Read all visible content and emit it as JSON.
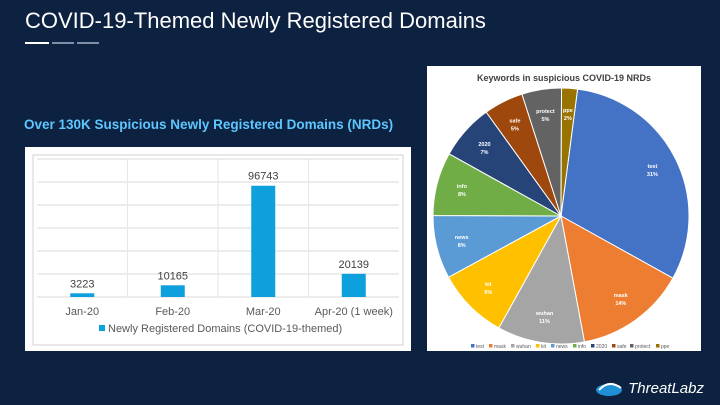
{
  "slide": {
    "title": "COVID-19-Themed Newly Registered Domains"
  },
  "colors": {
    "background": "#0d2140",
    "accent": "#5ec7ff",
    "bar": "#0ea0dc"
  },
  "bar_section": {
    "subtitle": "Over 130K Suspicious Newly Registered Domains (NRDs)"
  },
  "logo": {
    "text": "ThreatLabz",
    "icon": "cloud-logo-icon"
  },
  "chart_data": [
    {
      "type": "bar",
      "title": "",
      "categories": [
        "Jan-20",
        "Feb-20",
        "Mar-20",
        "Apr-20 (1 week)"
      ],
      "series": [
        {
          "name": "Newly Registered Domains (COVID-19-themed)",
          "values": [
            3223,
            10165,
            96743,
            20139
          ]
        }
      ],
      "data_labels": [
        "3223",
        "10165",
        "96743",
        "20139"
      ],
      "ylim": [
        0,
        120000
      ],
      "grid": true,
      "legend": "bottom",
      "color": "#0ea0dc"
    },
    {
      "type": "pie",
      "title": "Keywords in suspicious COVID-19 NRDs",
      "slices": [
        {
          "label": "test",
          "value": 31,
          "pct": "31%",
          "color": "#4472c4"
        },
        {
          "label": "mask",
          "value": 14,
          "pct": "14%",
          "color": "#ed7d31"
        },
        {
          "label": "wuhan",
          "value": 11,
          "pct": "11%",
          "color": "#a5a5a5"
        },
        {
          "label": "kit",
          "value": 9,
          "pct": "9%",
          "color": "#ffc000"
        },
        {
          "label": "news",
          "value": 8,
          "pct": "8%",
          "color": "#5b9bd5"
        },
        {
          "label": "info",
          "value": 8,
          "pct": "8%",
          "color": "#70ad47"
        },
        {
          "label": "2020",
          "value": 7,
          "pct": "7%",
          "color": "#264478"
        },
        {
          "label": "safe",
          "value": 5,
          "pct": "5%",
          "color": "#9e480e"
        },
        {
          "label": "protect",
          "value": 5,
          "pct": "5%",
          "color": "#636363"
        },
        {
          "label": "ppe",
          "value": 2,
          "pct": "2%",
          "color": "#997300"
        }
      ],
      "legend": "bottom"
    }
  ]
}
